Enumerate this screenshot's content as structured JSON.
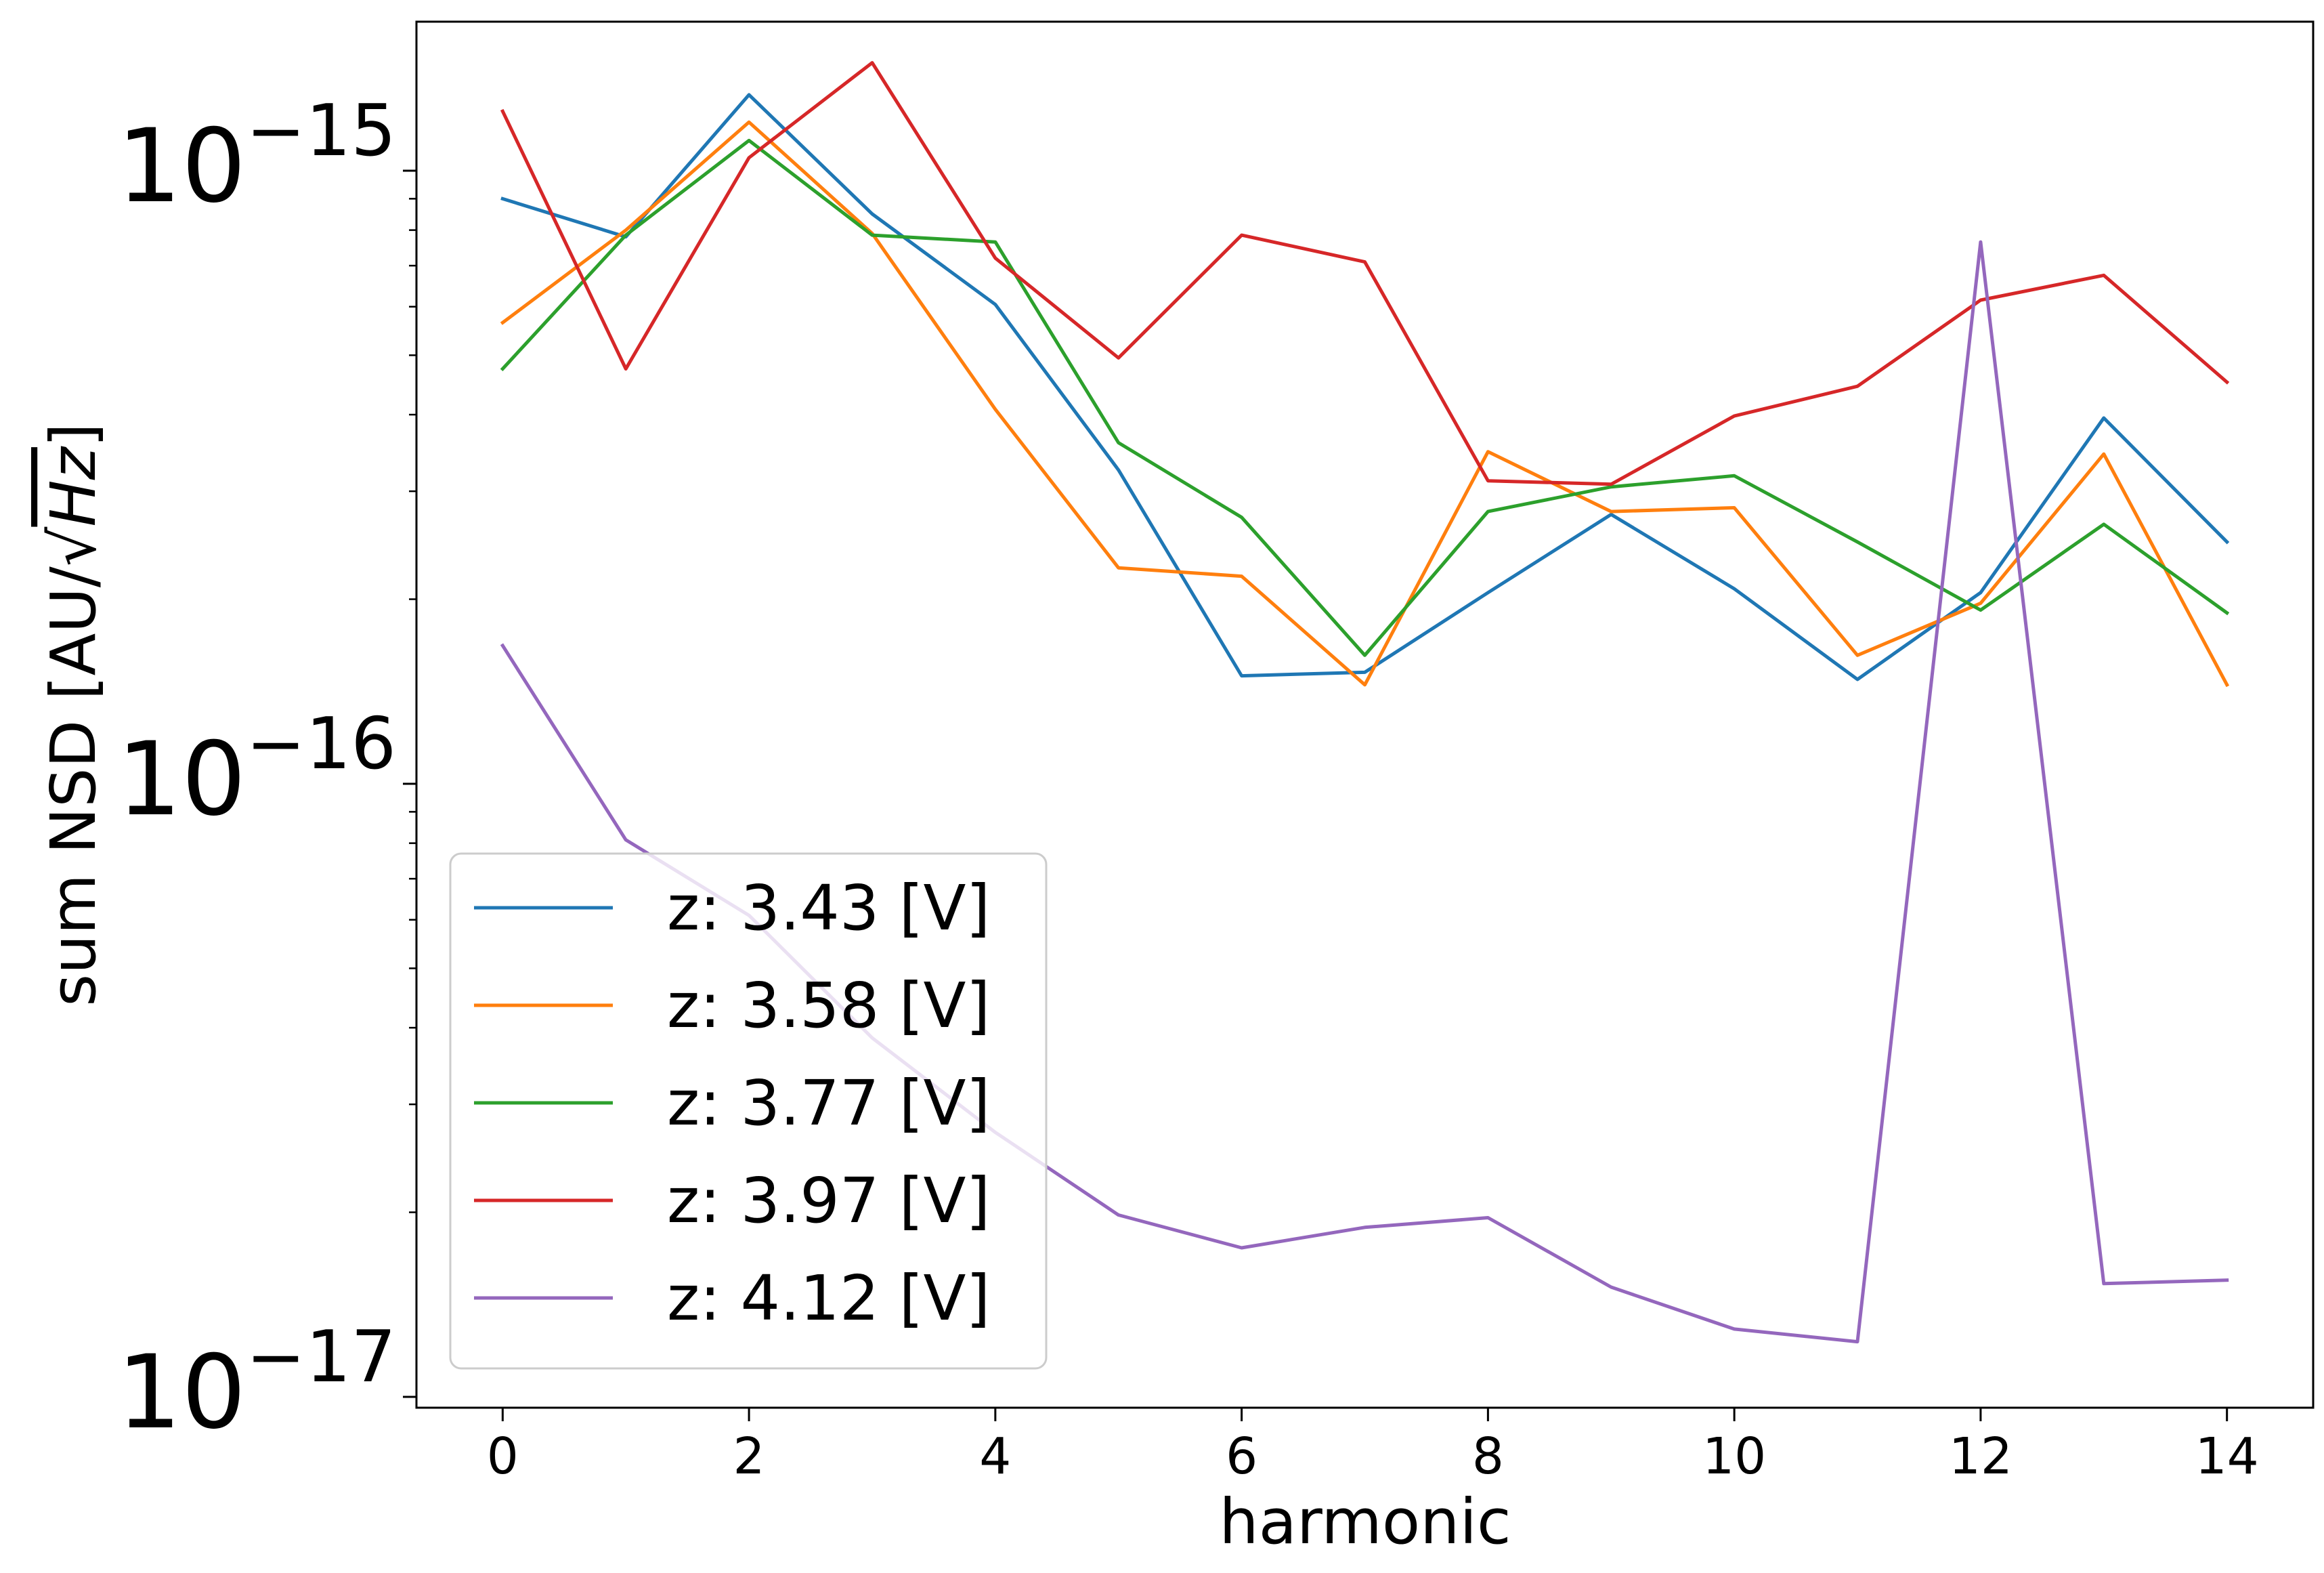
{
  "chart_data": {
    "type": "line",
    "title": "",
    "xlabel": "harmonic",
    "ylabel": "sum NSD [AU/√Hz]",
    "ylabel_parts": {
      "main": "sum NSD [AU/",
      "root": "√",
      "rooted": "Hz",
      "close": "]"
    },
    "yscale": "log",
    "xlim": [
      -0.7,
      14.7
    ],
    "ylim": [
      9.6e-18,
      1.75e-15
    ],
    "x": [
      0,
      1,
      2,
      3,
      4,
      5,
      6,
      7,
      8,
      9,
      10,
      11,
      12,
      13,
      14
    ],
    "x_ticks": [
      0,
      2,
      4,
      6,
      8,
      10,
      12,
      14
    ],
    "x_tick_labels": [
      "0",
      "2",
      "4",
      "6",
      "8",
      "10",
      "12",
      "14"
    ],
    "y_major_ticks": [
      {
        "value": 1e-15,
        "base": "10",
        "exp": "−15"
      },
      {
        "value": 1e-16,
        "base": "10",
        "exp": "−16"
      },
      {
        "value": 1e-17,
        "base": "10",
        "exp": "−17"
      }
    ],
    "grid": false,
    "legend_position": "lower-left",
    "series": [
      {
        "name": "z: 3.43 [V]",
        "color": "#1f77b4",
        "values": [
          9e-16,
          7.8e-16,
          1.33e-15,
          8.5e-16,
          6.05e-16,
          3.25e-16,
          1.5e-16,
          1.52e-16,
          2.05e-16,
          2.75e-16,
          2.08e-16,
          1.48e-16,
          2.05e-16,
          3.95e-16,
          2.48e-16
        ]
      },
      {
        "name": "z: 3.58 [V]",
        "color": "#ff7f0e",
        "values": [
          5.65e-16,
          8e-16,
          1.2e-15,
          7.9e-16,
          4.08e-16,
          2.25e-16,
          2.18e-16,
          1.45e-16,
          3.48e-16,
          2.78e-16,
          2.82e-16,
          1.62e-16,
          1.97e-16,
          3.45e-16,
          1.45e-16
        ]
      },
      {
        "name": "z: 3.77 [V]",
        "color": "#2ca02c",
        "values": [
          4.75e-16,
          7.85e-16,
          1.12e-15,
          7.85e-16,
          7.65e-16,
          3.6e-16,
          2.72e-16,
          1.62e-16,
          2.78e-16,
          3.05e-16,
          3.18e-16,
          2.48e-16,
          1.92e-16,
          2.65e-16,
          1.9e-16
        ]
      },
      {
        "name": "z: 3.97 [V]",
        "color": "#d62728",
        "values": [
          1.25e-15,
          4.75e-16,
          1.05e-15,
          1.5e-15,
          7.2e-16,
          4.95e-16,
          7.85e-16,
          7.1e-16,
          3.12e-16,
          3.08e-16,
          3.98e-16,
          4.45e-16,
          6.15e-16,
          6.75e-16,
          4.52e-16
        ]
      },
      {
        "name": "z: 4.12 [V]",
        "color": "#9467bd",
        "values": [
          1.68e-16,
          8.1e-17,
          6.1e-17,
          3.85e-17,
          2.7e-17,
          1.98e-17,
          1.75e-17,
          1.89e-17,
          1.96e-17,
          1.51e-17,
          1.29e-17,
          1.23e-17,
          7.65e-16,
          1.53e-17,
          1.55e-17
        ]
      }
    ]
  }
}
